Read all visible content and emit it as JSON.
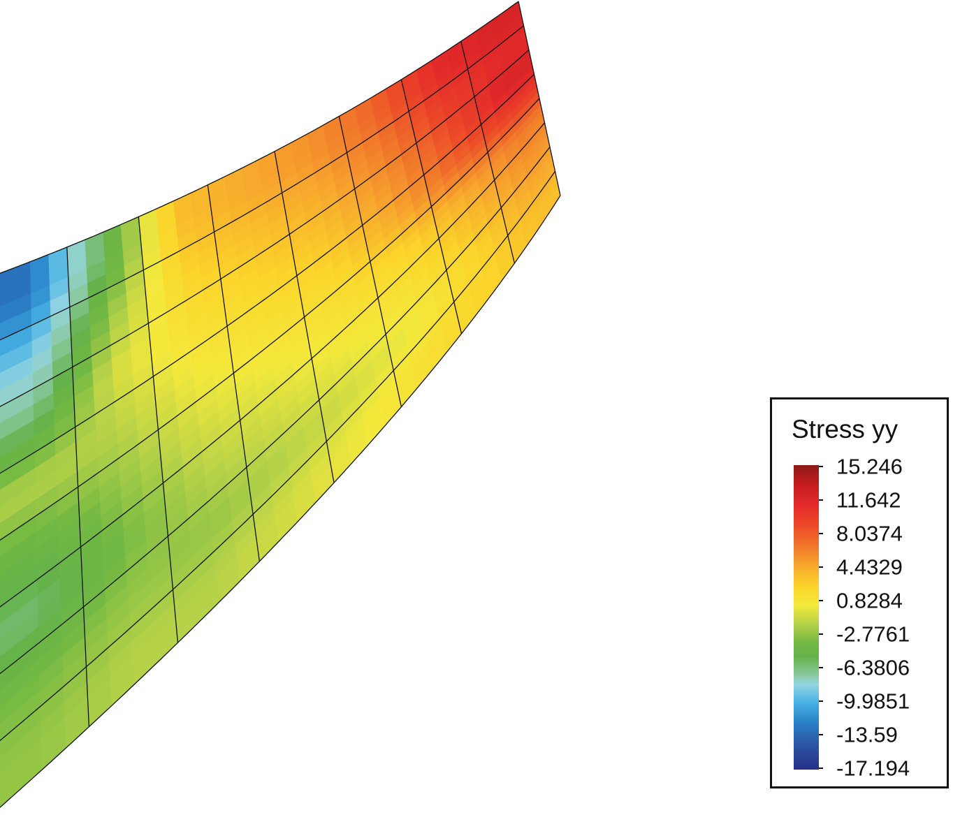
{
  "chart_data": {
    "type": "heatmap",
    "title": "",
    "colorbar": {
      "title": "Stress yy",
      "ticks": [
        "15.246",
        "11.642",
        "8.0374",
        "4.4329",
        "0.8284",
        "-2.7761",
        "-6.3806",
        "-9.9851",
        "-13.59",
        "-17.194"
      ],
      "min": -17.194,
      "max": 15.246
    },
    "columns": 8,
    "rows": 8,
    "values": [
      [
        -14,
        -5,
        4,
        5,
        6,
        8,
        11,
        12
      ],
      [
        -10,
        -2,
        3,
        4,
        5,
        7,
        10,
        11
      ],
      [
        -6,
        0,
        2,
        3,
        4,
        6,
        9,
        12
      ],
      [
        -1,
        -1,
        1,
        2,
        3,
        5,
        8,
        10
      ],
      [
        -4,
        -2,
        0,
        1,
        2,
        3,
        5,
        7
      ],
      [
        -6,
        -3,
        -1,
        0,
        1,
        2,
        4,
        6
      ],
      [
        -3,
        -2,
        -2,
        -1,
        0,
        1,
        3,
        5
      ],
      [
        -2,
        -1,
        -1,
        0,
        1,
        2,
        3,
        4
      ]
    ],
    "grid": true,
    "legend_position": "bottom-right"
  },
  "colors": {
    "scale": [
      "#262f87",
      "#2b59a8",
      "#2a85c9",
      "#48b1e4",
      "#94d5e2",
      "#8ac9a0",
      "#64b24a",
      "#74b943",
      "#b7d248",
      "#f4e93c",
      "#fbd42a",
      "#f7a82d",
      "#f17a2b",
      "#ec4a28",
      "#e3292a",
      "#c21d1f",
      "#8b1a1a"
    ],
    "mesh_line": "#111111"
  }
}
